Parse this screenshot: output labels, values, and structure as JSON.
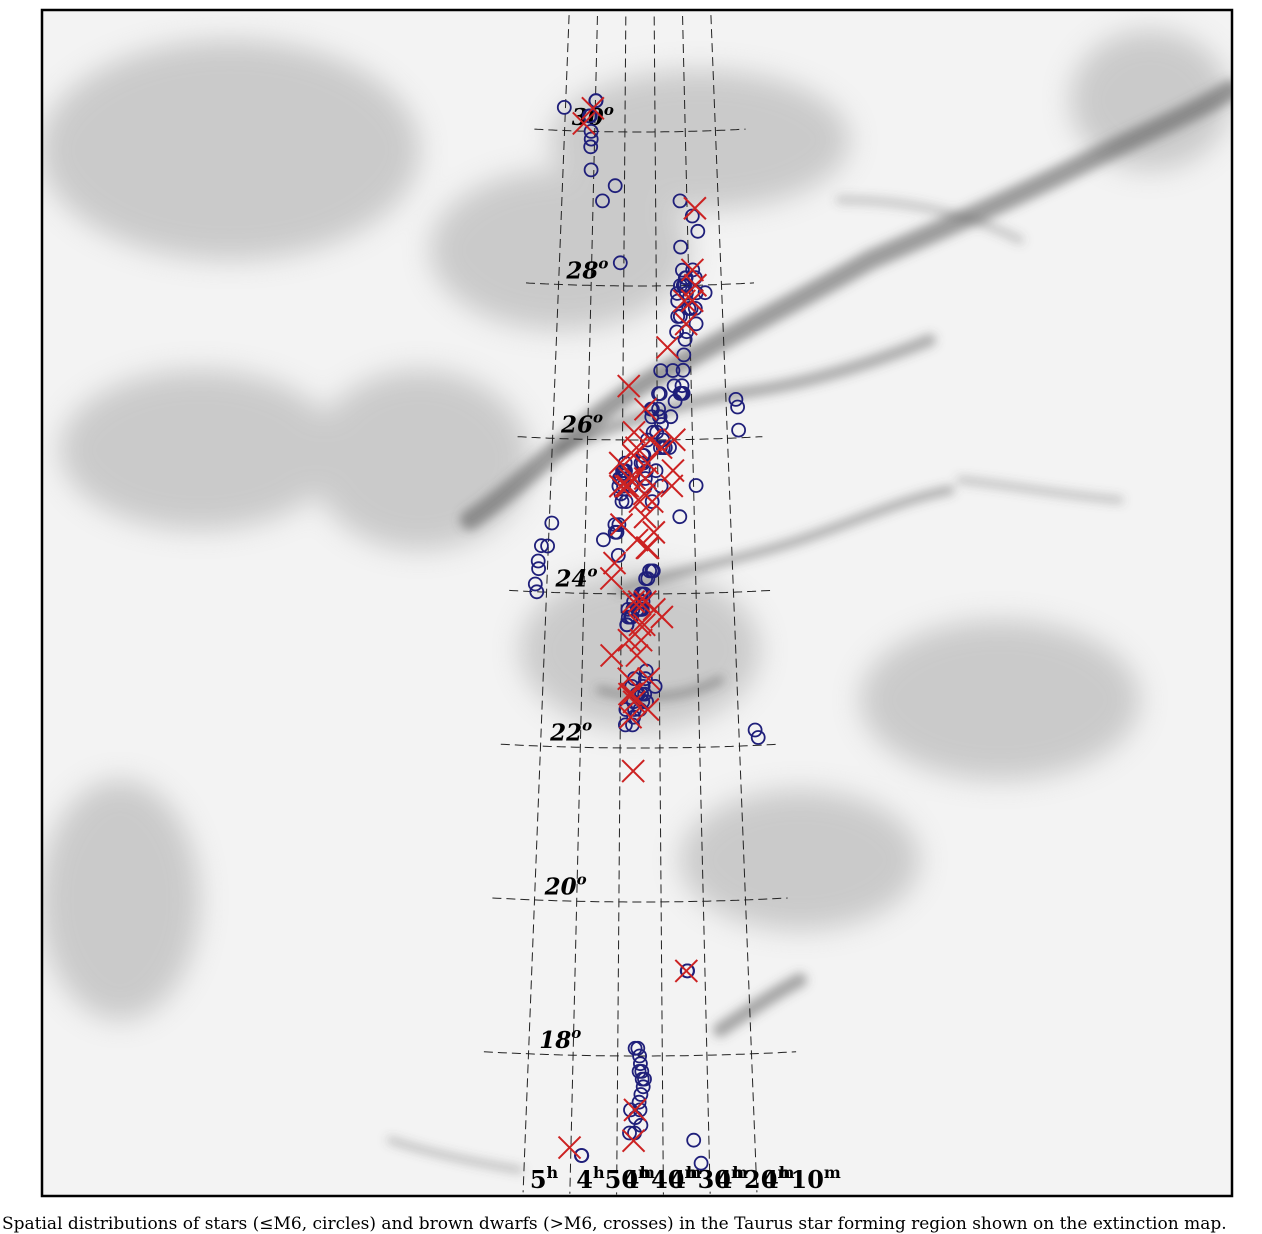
{
  "chart_data": {
    "type": "scatter",
    "title": "",
    "projection": "curved equatorial grid (RA decreasing to the right)",
    "background": "grayscale extinction map",
    "grid": true,
    "dec_labels": [
      {
        "dec": 30,
        "text": "30",
        "sup": "o"
      },
      {
        "dec": 28,
        "text": "28",
        "sup": "o"
      },
      {
        "dec": 26,
        "text": "26",
        "sup": "o"
      },
      {
        "dec": 24,
        "text": "24",
        "sup": "o"
      },
      {
        "dec": 22,
        "text": "22",
        "sup": "o"
      },
      {
        "dec": 20,
        "text": "20",
        "sup": "o"
      },
      {
        "dec": 18,
        "text": "18",
        "sup": "o"
      }
    ],
    "ra_labels": [
      {
        "ra_min": 300,
        "h": "5",
        "m": ""
      },
      {
        "ra_min": 290,
        "h": "4",
        "m": "50"
      },
      {
        "ra_min": 280,
        "h": "4",
        "m": "40"
      },
      {
        "ra_min": 270,
        "h": "4",
        "m": "30"
      },
      {
        "ra_min": 260,
        "h": "4",
        "m": "20"
      },
      {
        "ra_min": 250,
        "h": "4",
        "m": "10"
      }
    ],
    "ra_unit_label": {
      "h": "h",
      "m": "m"
    },
    "series": [
      {
        "marker": "circle",
        "color": "#1f1f7a",
        "points": [
          [
            300.4,
            30.3
          ],
          [
            291.9,
            30.2
          ],
          [
            291.6,
            30.2
          ],
          [
            291.2,
            30.0
          ],
          [
            291.1,
            29.9
          ],
          [
            291.2,
            29.8
          ],
          [
            290.9,
            29.5
          ],
          [
            289.8,
            30.4
          ],
          [
            289.9,
            30.4
          ],
          [
            287.0,
            29.1
          ],
          [
            283.0,
            29.3
          ],
          [
            281.1,
            28.3
          ],
          [
            263.6,
            27.9
          ],
          [
            263.5,
            27.8
          ],
          [
            263.6,
            27.6
          ],
          [
            262.8,
            27.6
          ],
          [
            264.0,
            27.4
          ],
          [
            262.2,
            29.1
          ],
          [
            262.3,
            28.5
          ],
          [
            262.6,
            28.0
          ],
          [
            261.7,
            28.0
          ],
          [
            261.4,
            28.0
          ],
          [
            261.3,
            28.0
          ],
          [
            261.9,
            28.2
          ],
          [
            261.5,
            28.0
          ],
          [
            261.0,
            28.1
          ],
          [
            260.8,
            28.1
          ],
          [
            260.6,
            28.0
          ],
          [
            260.8,
            27.9
          ],
          [
            260.2,
            27.7
          ],
          [
            259.5,
            27.7
          ],
          [
            258.7,
            28.2
          ],
          [
            258.0,
            28.1
          ],
          [
            257.8,
            27.9
          ],
          [
            258.2,
            27.7
          ],
          [
            258.1,
            27.5
          ],
          [
            255.1,
            27.9
          ],
          [
            256.8,
            28.7
          ],
          [
            258.4,
            28.9
          ],
          [
            261.0,
            27.4
          ],
          [
            261.5,
            27.3
          ],
          [
            262.7,
            26.7
          ],
          [
            262.3,
            26.9
          ],
          [
            262.0,
            27.1
          ],
          [
            262.4,
            26.6
          ],
          [
            262.8,
            26.6
          ],
          [
            263.3,
            26.6
          ],
          [
            263.0,
            26.6
          ],
          [
            265.3,
            26.9
          ],
          [
            265.0,
            26.7
          ],
          [
            264.8,
            26.5
          ],
          [
            266.1,
            26.3
          ],
          [
            268.9,
            26.9
          ],
          [
            269.1,
            26.6
          ],
          [
            269.6,
            26.4
          ],
          [
            269.6,
            26.6
          ],
          [
            269.4,
            26.3
          ],
          [
            269.2,
            26.3
          ],
          [
            268.8,
            26.2
          ],
          [
            268.5,
            26.0
          ],
          [
            267.8,
            25.9
          ],
          [
            268.4,
            25.9
          ],
          [
            269.2,
            25.9
          ],
          [
            270.2,
            26.1
          ],
          [
            271.4,
            26.4
          ],
          [
            271.6,
            26.3
          ],
          [
            271.8,
            26.4
          ],
          [
            271.2,
            26.1
          ],
          [
            272.9,
            26.0
          ],
          [
            273.9,
            25.8
          ],
          [
            274.2,
            25.8
          ],
          [
            274.1,
            25.7
          ],
          [
            273.2,
            25.6
          ],
          [
            273.5,
            25.5
          ],
          [
            273.5,
            25.4
          ],
          [
            274.7,
            25.7
          ],
          [
            277.3,
            25.4
          ],
          [
            278.6,
            25.5
          ],
          [
            279.2,
            25.7
          ],
          [
            279.5,
            25.6
          ],
          [
            279.9,
            25.6
          ],
          [
            280.2,
            25.5
          ],
          [
            280.5,
            25.5
          ],
          [
            280.9,
            25.4
          ],
          [
            280.8,
            25.5
          ],
          [
            280.3,
            25.3
          ],
          [
            280.0,
            25.2
          ],
          [
            278.9,
            25.2
          ],
          [
            281.9,
            24.9
          ],
          [
            281.8,
            24.8
          ],
          [
            281.3,
            24.8
          ],
          [
            280.8,
            24.9
          ],
          [
            280.9,
            24.5
          ],
          [
            285.0,
            24.7
          ],
          [
            279.1,
            25.6
          ],
          [
            279.6,
            25.4
          ],
          [
            266.6,
            25.9
          ],
          [
            270.5,
            25.6
          ],
          [
            269.1,
            25.4
          ],
          [
            264.0,
            25.0
          ],
          [
            271.6,
            25.2
          ],
          [
            299.3,
            24.9
          ],
          [
            300.2,
            24.6
          ],
          [
            301.9,
            24.6
          ],
          [
            302.6,
            24.4
          ],
          [
            302.4,
            24.3
          ],
          [
            303.1,
            24.1
          ],
          [
            302.6,
            24.0
          ],
          [
            271.8,
            24.3
          ],
          [
            271.4,
            24.3
          ],
          [
            272.4,
            24.3
          ],
          [
            272.9,
            24.2
          ],
          [
            273.5,
            24.2
          ],
          [
            273.8,
            24.0
          ],
          [
            274.2,
            23.9
          ],
          [
            274.0,
            24.0
          ],
          [
            274.6,
            24.0
          ],
          [
            274.8,
            24.0
          ],
          [
            274.4,
            23.8
          ],
          [
            274.7,
            23.8
          ],
          [
            275.1,
            23.8
          ],
          [
            275.7,
            23.8
          ],
          [
            276.7,
            23.9
          ],
          [
            276.9,
            23.8
          ],
          [
            277.2,
            23.7
          ],
          [
            277.5,
            23.7
          ],
          [
            278.1,
            23.7
          ],
          [
            278.4,
            23.6
          ],
          [
            278.5,
            23.6
          ],
          [
            278.2,
            23.8
          ],
          [
            259.3,
            25.4
          ],
          [
            276.5,
            22.9
          ],
          [
            277.1,
            22.8
          ],
          [
            276.7,
            22.6
          ],
          [
            276.4,
            22.5
          ],
          [
            276.6,
            22.4
          ],
          [
            276.9,
            22.3
          ],
          [
            275.4,
            22.7
          ],
          [
            275.8,
            22.7
          ],
          [
            274.6,
            22.7
          ],
          [
            274.3,
            22.6
          ],
          [
            274.2,
            22.8
          ],
          [
            273.8,
            22.7
          ],
          [
            273.6,
            22.9
          ],
          [
            273.4,
            23.0
          ],
          [
            271.1,
            22.8
          ],
          [
            273.3,
            22.6
          ],
          [
            275.0,
            22.5
          ],
          [
            278.6,
            22.5
          ],
          [
            278.7,
            22.3
          ],
          [
            247.1,
            26.5
          ],
          [
            246.7,
            26.4
          ],
          [
            246.7,
            26.1
          ],
          [
            245.9,
            22.2
          ],
          [
            245.2,
            22.1
          ],
          [
            264.1,
            19.1
          ],
          [
            264.0,
            19.1
          ],
          [
            276.1,
            18.1
          ],
          [
            275.5,
            18.1
          ],
          [
            275.1,
            18.0
          ],
          [
            274.9,
            17.9
          ],
          [
            275.2,
            17.8
          ],
          [
            274.6,
            17.8
          ],
          [
            274.5,
            17.7
          ],
          [
            274.3,
            17.6
          ],
          [
            274.0,
            17.7
          ],
          [
            274.8,
            17.5
          ],
          [
            275.2,
            17.4
          ],
          [
            275.0,
            17.3
          ],
          [
            274.8,
            17.1
          ],
          [
            276.0,
            17.2
          ],
          [
            276.2,
            17.0
          ],
          [
            277.3,
            17.0
          ],
          [
            277.1,
            17.3
          ],
          [
            263.3,
            16.9
          ],
          [
            261.8,
            16.6
          ],
          [
            287.6,
            16.7
          ],
          [
            287.7,
            16.7
          ]
        ]
      },
      {
        "marker": "cross",
        "color": "#cc2222",
        "points": [
          [
            293.7,
            30.1
          ],
          [
            290.8,
            30.3
          ],
          [
            257.5,
            29.0
          ],
          [
            258.8,
            28.2
          ],
          [
            258.0,
            28.0
          ],
          [
            259.1,
            27.8
          ],
          [
            261.5,
            27.8
          ],
          [
            261.1,
            27.5
          ],
          [
            266.8,
            27.2
          ],
          [
            278.3,
            26.7
          ],
          [
            273.4,
            26.4
          ],
          [
            272.0,
            26.0
          ],
          [
            272.9,
            25.7
          ],
          [
            273.5,
            25.5
          ],
          [
            273.8,
            25.3
          ],
          [
            269.0,
            25.9
          ],
          [
            265.2,
            26.0
          ],
          [
            265.7,
            25.6
          ],
          [
            266.1,
            25.4
          ],
          [
            273.6,
            25.0
          ],
          [
            275.0,
            25.2
          ],
          [
            275.8,
            24.7
          ],
          [
            273.1,
            24.6
          ],
          [
            280.1,
            24.9
          ],
          [
            280.5,
            25.4
          ],
          [
            280.6,
            25.7
          ],
          [
            279.0,
            25.4
          ],
          [
            278.4,
            25.4
          ],
          [
            278.0,
            25.5
          ],
          [
            276.7,
            26.1
          ],
          [
            276.8,
            25.8
          ],
          [
            276.0,
            25.9
          ],
          [
            276.6,
            25.5
          ],
          [
            281.9,
            24.4
          ],
          [
            282.7,
            24.2
          ],
          [
            271.2,
            23.8
          ],
          [
            269.2,
            23.7
          ],
          [
            277.9,
            23.4
          ],
          [
            276.7,
            23.9
          ],
          [
            275.2,
            23.9
          ],
          [
            273.6,
            23.9
          ],
          [
            273.9,
            23.6
          ],
          [
            275.0,
            23.6
          ],
          [
            272.8,
            24.6
          ],
          [
            271.6,
            25.2
          ],
          [
            271.2,
            24.8
          ],
          [
            275.8,
            23.2
          ],
          [
            274.7,
            23.4
          ],
          [
            272.8,
            22.9
          ],
          [
            273.0,
            22.5
          ],
          [
            282.4,
            23.2
          ],
          [
            277.7,
            22.7
          ],
          [
            277.4,
            22.4
          ],
          [
            277.9,
            22.9
          ],
          [
            277.0,
            22.7
          ],
          [
            276.5,
            22.6
          ],
          [
            276.7,
            21.7
          ],
          [
            264.3,
            19.1
          ],
          [
            276.1,
            17.3
          ],
          [
            276.4,
            16.9
          ],
          [
            290.3,
            16.8
          ]
        ]
      }
    ]
  },
  "caption": "Spatial distributions of stars (≤M6, circles) and brown dwarfs (>M6, crosses) in the Taurus star forming region shown on the extinction map."
}
